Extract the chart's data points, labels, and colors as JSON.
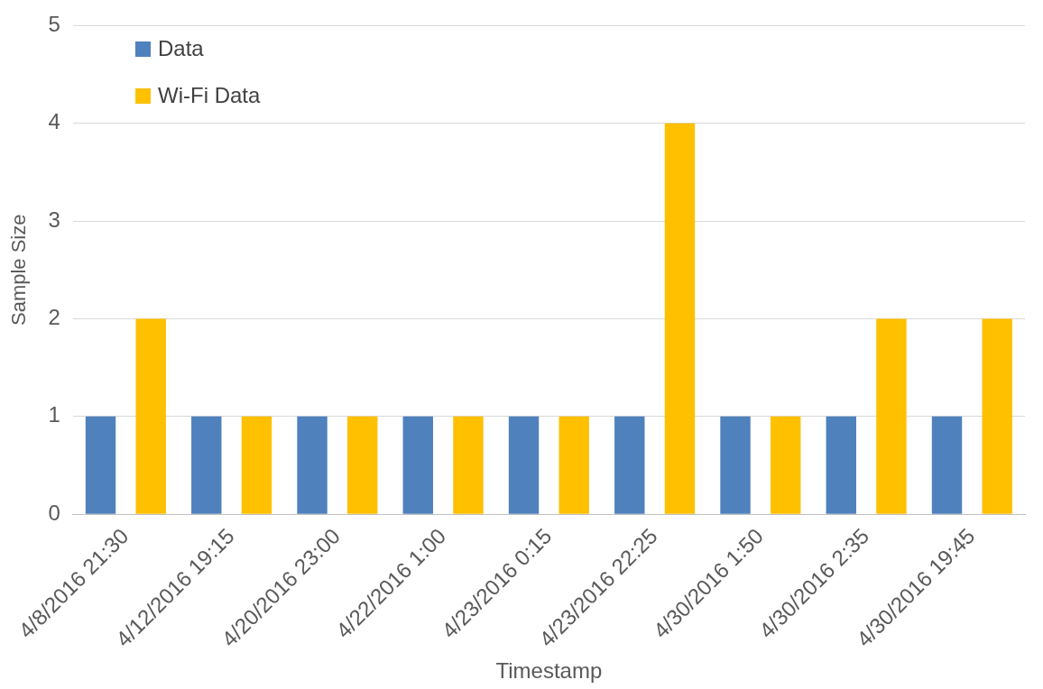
{
  "chart_data": {
    "type": "bar",
    "categories": [
      "4/8/2016 21:30",
      "4/12/2016 19:15",
      "4/20/2016 23:00",
      "4/22/2016 1:00",
      "4/23/2016 0:15",
      "4/23/2016 22:25",
      "4/30/2016 1:50",
      "4/30/2016 2:35",
      "4/30/2016 19:45"
    ],
    "series": [
      {
        "name": "Data",
        "color": "#4f81bd",
        "values": [
          1,
          1,
          1,
          1,
          1,
          1,
          1,
          1,
          1
        ]
      },
      {
        "name": "Wi-Fi Data",
        "color": "#ffc000",
        "values": [
          2,
          1,
          1,
          1,
          1,
          4,
          1,
          2,
          2
        ]
      }
    ],
    "xlabel": "Timestamp",
    "ylabel": "Sample Size",
    "ylim": [
      0,
      5
    ],
    "yticks": [
      0,
      1,
      2,
      3,
      4,
      5
    ],
    "grid": "y",
    "legend": "top left"
  }
}
